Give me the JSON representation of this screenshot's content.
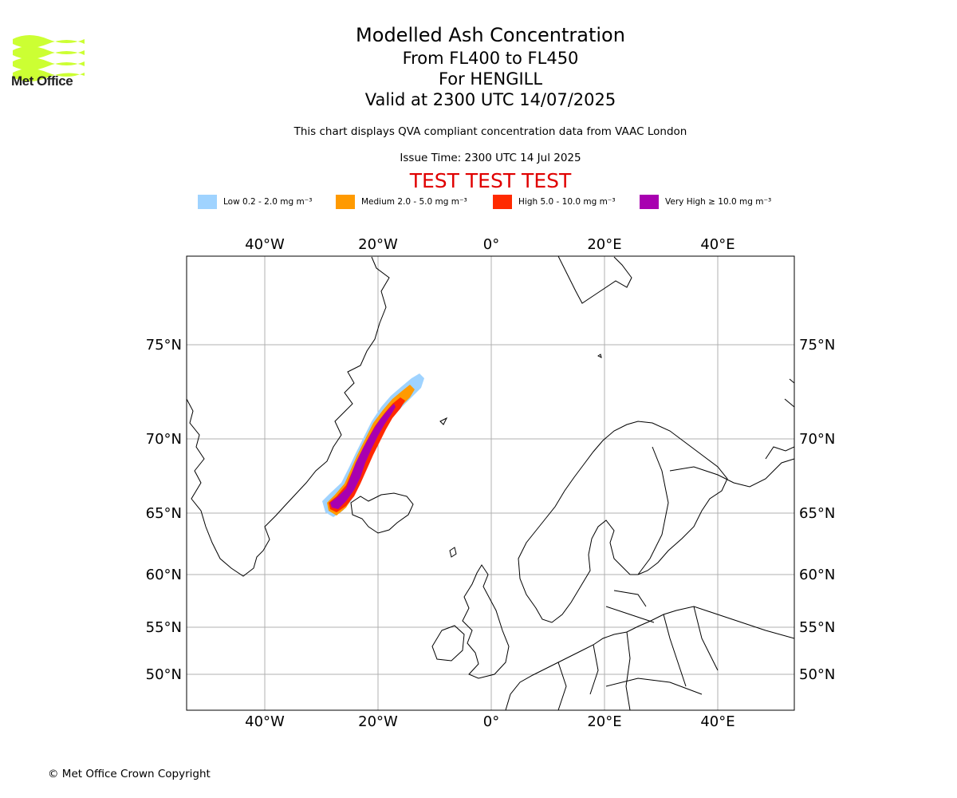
{
  "logo": {
    "text": "Met Office",
    "color": "#ccff33"
  },
  "title": {
    "line1": "Modelled Ash Concentration",
    "line2": "From FL400 to FL450",
    "line3": "For HENGILL",
    "line4": "Valid at 2300 UTC 14/07/2025"
  },
  "description": "This chart displays QVA compliant concentration data from VAAC London",
  "issue_time": "Issue Time: 2300 UTC 14 Jul 2025",
  "test_banner": "TEST TEST TEST",
  "legend": [
    {
      "label": "Low 0.2 - 2.0 mg m⁻³",
      "color": "#9fd3ff"
    },
    {
      "label": "Medium 2.0 - 5.0 mg m⁻³",
      "color": "#ff9a00"
    },
    {
      "label": "High 5.0 - 10.0 mg m⁻³",
      "color": "#ff2a00"
    },
    {
      "label": "Very High ≥ 10.0 mg m⁻³",
      "color": "#a800b0"
    }
  ],
  "axes": {
    "longitude_labels": [
      "40°W",
      "20°W",
      "0°",
      "20°E",
      "40°E"
    ],
    "latitude_labels": [
      "75°N",
      "70°N",
      "65°N",
      "60°N",
      "55°N",
      "50°N"
    ]
  },
  "copyright": "© Met Office Crown Copyright"
}
